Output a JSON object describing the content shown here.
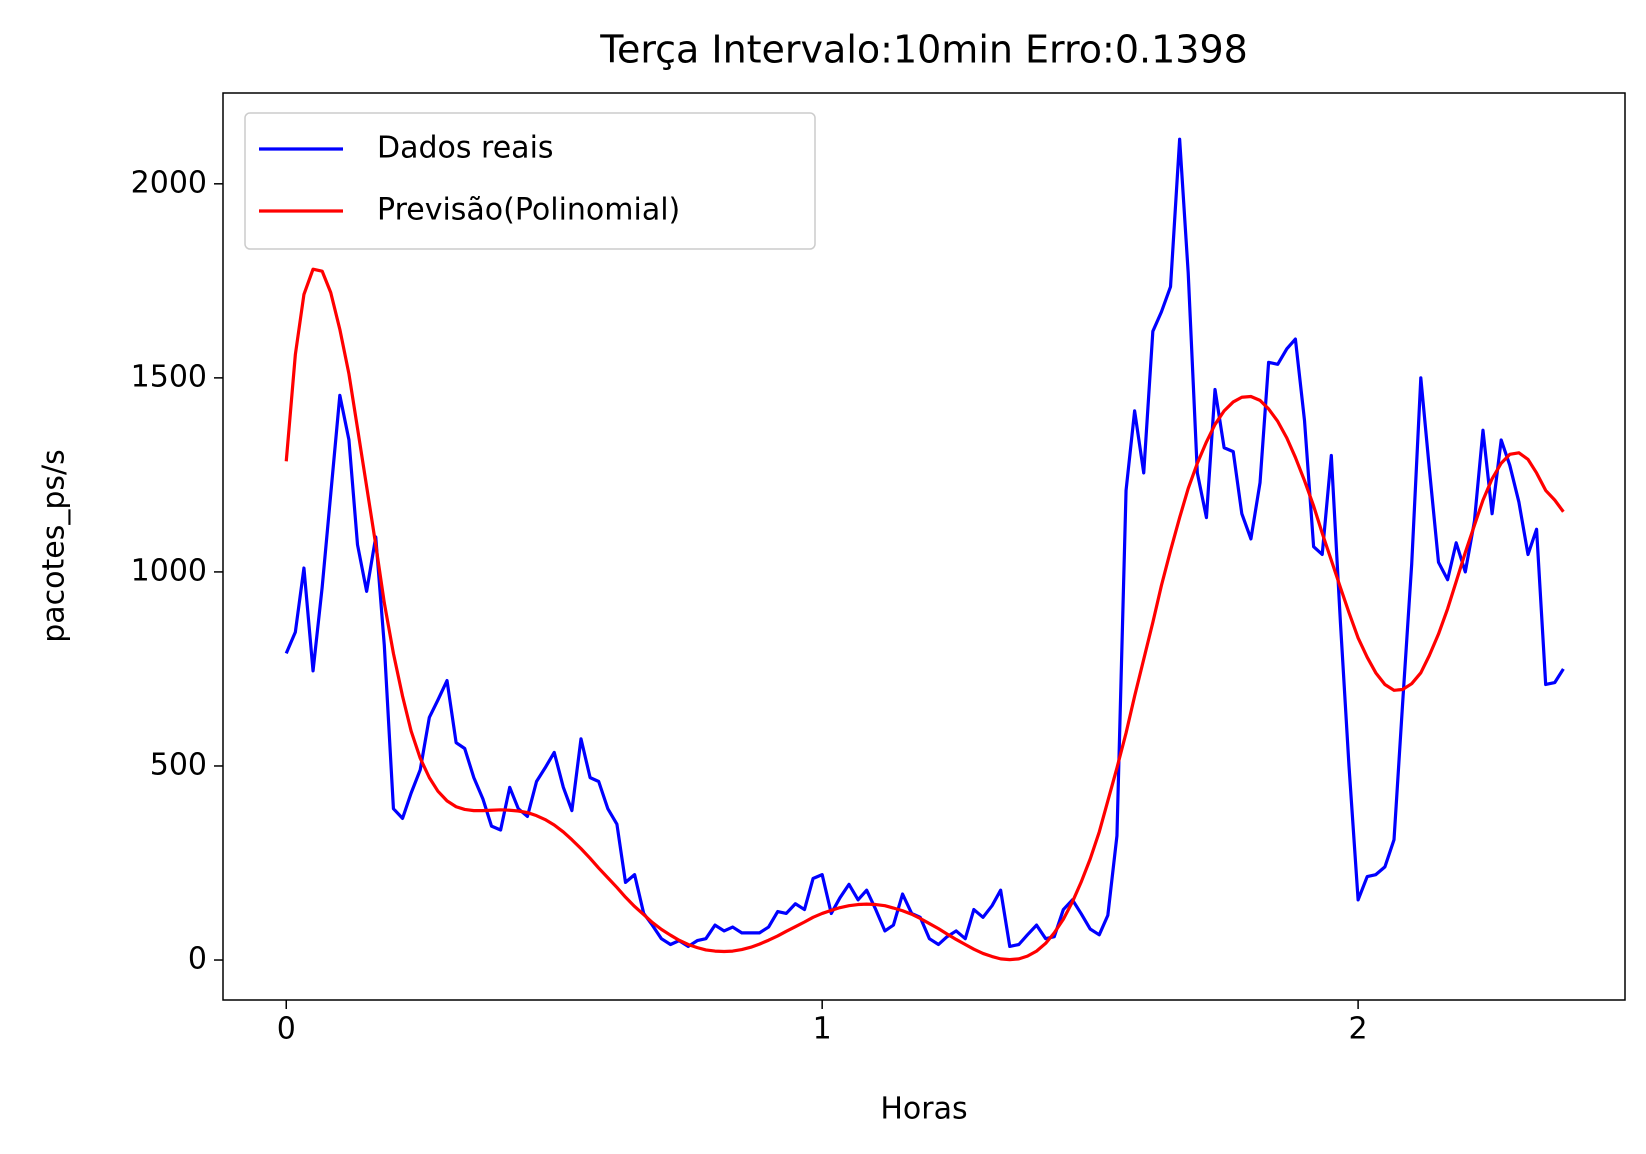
{
  "chart_data": {
    "type": "line",
    "title": "Terça Intervalo:10min Erro:0.1398",
    "xlabel": "Horas",
    "ylabel": "pacotes_ps/s",
    "x": [
      0,
      0.017,
      0.033,
      0.05,
      0.067,
      0.083,
      0.1,
      0.117,
      0.133,
      0.15,
      0.167,
      0.183,
      0.2,
      0.217,
      0.233,
      0.25,
      0.267,
      0.283,
      0.3,
      0.317,
      0.333,
      0.35,
      0.367,
      0.383,
      0.4,
      0.417,
      0.433,
      0.45,
      0.467,
      0.483,
      0.5,
      0.517,
      0.533,
      0.55,
      0.567,
      0.583,
      0.6,
      0.617,
      0.633,
      0.65,
      0.667,
      0.683,
      0.7,
      0.717,
      0.733,
      0.75,
      0.767,
      0.783,
      0.8,
      0.817,
      0.833,
      0.85,
      0.867,
      0.883,
      0.9,
      0.917,
      0.933,
      0.95,
      0.967,
      0.983,
      1,
      1.017,
      1.033,
      1.05,
      1.067,
      1.083,
      1.1,
      1.117,
      1.133,
      1.15,
      1.167,
      1.183,
      1.2,
      1.217,
      1.233,
      1.25,
      1.267,
      1.283,
      1.3,
      1.317,
      1.333,
      1.35,
      1.367,
      1.383,
      1.4,
      1.417,
      1.433,
      1.45,
      1.467,
      1.483,
      1.5,
      1.517,
      1.533,
      1.55,
      1.567,
      1.583,
      1.6,
      1.617,
      1.633,
      1.65,
      1.667,
      1.683,
      1.7,
      1.717,
      1.733,
      1.75,
      1.767,
      1.783,
      1.8,
      1.817,
      1.833,
      1.85,
      1.867,
      1.883,
      1.9,
      1.917,
      1.933,
      1.95,
      1.967,
      1.983,
      2,
      2.017,
      2.033,
      2.05,
      2.067,
      2.083,
      2.1,
      2.117,
      2.133,
      2.15,
      2.167,
      2.183,
      2.2,
      2.217,
      2.233,
      2.25,
      2.267,
      2.283,
      2.3,
      2.317,
      2.333,
      2.35,
      2.367,
      2.383
    ],
    "series": [
      {
        "name": "Dados reais",
        "color": "#0000ff",
        "values": [
          790,
          845,
          1010,
          745,
          960,
          1200,
          1455,
          1340,
          1070,
          950,
          1090,
          810,
          390,
          365,
          430,
          490,
          625,
          670,
          720,
          560,
          545,
          470,
          415,
          345,
          335,
          445,
          390,
          370,
          460,
          495,
          535,
          445,
          385,
          570,
          470,
          460,
          390,
          350,
          200,
          220,
          120,
          90,
          55,
          40,
          50,
          35,
          50,
          55,
          90,
          75,
          85,
          70,
          70,
          70,
          85,
          125,
          120,
          145,
          130,
          210,
          220,
          120,
          160,
          195,
          155,
          180,
          130,
          75,
          90,
          170,
          120,
          110,
          55,
          40,
          60,
          75,
          55,
          130,
          110,
          140,
          180,
          35,
          40,
          65,
          90,
          55,
          60,
          130,
          155,
          120,
          80,
          65,
          115,
          320,
          1210,
          1415,
          1255,
          1620,
          1670,
          1735,
          2115,
          1770,
          1255,
          1140,
          1470,
          1320,
          1310,
          1150,
          1085,
          1230,
          1540,
          1535,
          1575,
          1600,
          1390,
          1065,
          1045,
          1300,
          870,
          500,
          155,
          215,
          220,
          240,
          310,
          660,
          1020,
          1500,
          1265,
          1025,
          980,
          1075,
          1000,
          1130,
          1365,
          1150,
          1340,
          1275,
          1180,
          1045,
          1110,
          710,
          715,
          750
        ]
      },
      {
        "name": "Previsão(Polinomial)",
        "color": "#ff0000",
        "values": [
          1285,
          1560,
          1715,
          1780,
          1775,
          1720,
          1625,
          1510,
          1370,
          1220,
          1070,
          920,
          790,
          680,
          590,
          520,
          470,
          435,
          410,
          395,
          388,
          385,
          385,
          386,
          387,
          386,
          384,
          380,
          372,
          362,
          348,
          330,
          310,
          287,
          262,
          237,
          212,
          187,
          162,
          138,
          117,
          97,
          79,
          64,
          51,
          40,
          32,
          26,
          23,
          22,
          23,
          27,
          33,
          41,
          51,
          62,
          74,
          86,
          98,
          110,
          120,
          128,
          135,
          140,
          143,
          144,
          143,
          140,
          134,
          127,
          118,
          107,
          94,
          81,
          67,
          53,
          40,
          28,
          17,
          9,
          3,
          1,
          3,
          10,
          23,
          43,
          70,
          105,
          150,
          200,
          260,
          330,
          410,
          495,
          585,
          680,
          775,
          870,
          965,
          1055,
          1140,
          1215,
          1280,
          1335,
          1380,
          1415,
          1438,
          1450,
          1452,
          1442,
          1420,
          1388,
          1345,
          1295,
          1235,
          1170,
          1100,
          1030,
          960,
          895,
          830,
          780,
          740,
          710,
          695,
          697,
          712,
          740,
          785,
          840,
          905,
          975,
          1050,
          1120,
          1185,
          1240,
          1280,
          1303,
          1307,
          1290,
          1255,
          1210,
          1185,
          1155
        ]
      }
    ],
    "xlim": [
      -0.118,
      2.498
    ],
    "xticks": [
      0,
      1,
      2
    ],
    "ylim": [
      -103,
      2234
    ],
    "yticks": [
      0,
      500,
      1000,
      1500,
      2000
    ],
    "legend": "upper left",
    "grid": false
  }
}
